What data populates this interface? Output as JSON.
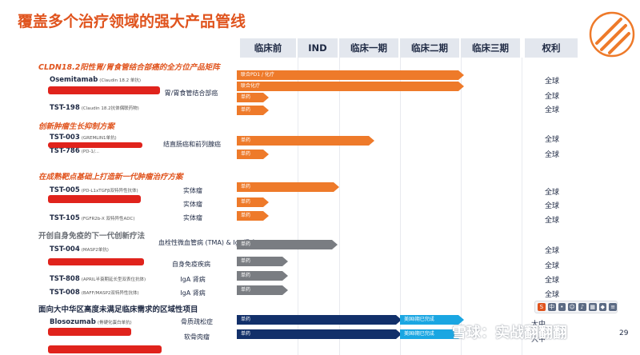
{
  "title": "覆盖多个治疗领域的强大产品管线",
  "headers": [
    "临床前",
    "IND",
    "临床一期",
    "临床二期",
    "临床三期",
    "权利"
  ],
  "sections": {
    "s1": "CLDN18.2阳性胃/胃食管结合部癌的全方位产品矩阵",
    "s2": "创新肿瘤生长抑制方案",
    "s3": "在成熟靶点基础上打造新一代肿瘤治疗方案",
    "s4": "开创自身免疫的下一代创新疗法",
    "s5": "面向大中华区高度未满足临床需求的区域性项目"
  },
  "drugs": {
    "d1": {
      "name": "Osemitamab",
      "sub": "(Claudin 18.2 单抗)"
    },
    "d2": {
      "name": "TST-198",
      "sub": "(Claudin 18.2抗体偶联药物)"
    },
    "d3": {
      "name": "TST-003",
      "sub": "(GREMLIN1单抗)"
    },
    "d4": {
      "name": "TST-786",
      "sub": "(PD-1/..."
    },
    "d5": {
      "name": "TST-005",
      "sub": "(PD-L1xTGFβ双特异性抗体)"
    },
    "d6": {
      "name": "TST-105",
      "sub": "(FGFR2b-X 双特异性ADC)"
    },
    "d7": {
      "name": "TST-004",
      "sub": "(MASP2单抗)"
    },
    "d8": {
      "name": "TST-808",
      "sub": "(APRIL半衰期延长型双表位抗体)"
    },
    "d9": {
      "name": "TST-008",
      "sub": "(BAFF/MASP2双特异性抗体)"
    },
    "d10": {
      "name": "Blosozumab",
      "sub": "(骨硬化蛋白单抗)"
    }
  },
  "indications": {
    "i1": "胃/胃食管结合部癌",
    "i2": "结直肠癌和前列腺癌",
    "i3a": "实体瘤",
    "i3b": "实体瘤",
    "i3c": "实体瘤",
    "i4": "血栓性微血管病 (TMA) & IgA肾病",
    "i5": "自身免疫疾病",
    "i6": "IgA 肾病",
    "i7": "IgA 肾病",
    "i8": "骨质疏松症",
    "i9": "软骨肉瘤"
  },
  "bars": {
    "b1": "联合PD1 / 化疗",
    "b2": "联合化疗",
    "b3": "单药",
    "b4": "美国I期已完成"
  },
  "rights": {
    "r": "全球",
    "r_last1": "大中",
    "r_last2": "大中"
  },
  "watermark": "雪球：实战翻翻翻",
  "page_number": "29"
}
